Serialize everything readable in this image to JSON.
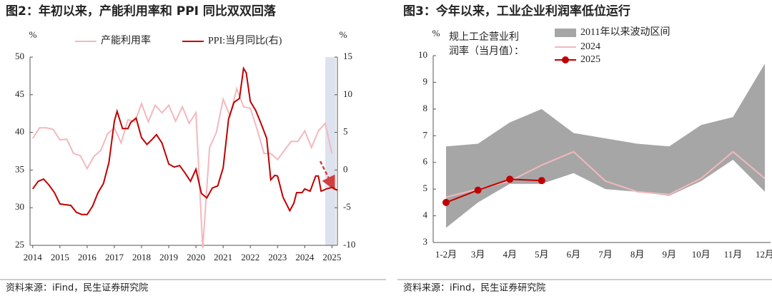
{
  "chart_data": [
    {
      "type": "line",
      "title": "图2：年初以来，产能利用率和 PPI 同比双双回落",
      "ylabel": "%",
      "y2label": "%",
      "xlim": [
        2013.9,
        2025.2
      ],
      "xticks": [
        2014,
        2015,
        2016,
        2017,
        2018,
        2019,
        2020,
        2021,
        2022,
        2023,
        2024,
        2025
      ],
      "ylim": [
        25,
        50
      ],
      "yticks": [
        25,
        30,
        35,
        40,
        45,
        50
      ],
      "y2lim": [
        -10,
        15
      ],
      "y2ticks": [
        -10,
        -5,
        0,
        5,
        10,
        15
      ],
      "series": [
        {
          "name": "产能利用率",
          "color": "#f2b8bd",
          "x": [
            2014,
            2014.25,
            2014.5,
            2014.75,
            2015,
            2015.25,
            2015.5,
            2015.75,
            2016,
            2016.25,
            2016.5,
            2016.75,
            2017,
            2017.25,
            2017.5,
            2017.75,
            2018,
            2018.25,
            2018.5,
            2018.75,
            2019,
            2019.25,
            2019.5,
            2019.75,
            2020,
            2020.25,
            2020.5,
            2020.75,
            2021,
            2021.25,
            2021.5,
            2021.75,
            2022,
            2022.25,
            2022.5,
            2022.75,
            2023,
            2023.25,
            2023.5,
            2023.75,
            2024,
            2024.25,
            2024.5,
            2024.75,
            2025
          ],
          "values": [
            39.2,
            40.6,
            40.6,
            40.4,
            39.0,
            39.1,
            37.2,
            36.9,
            35.2,
            36.8,
            37.6,
            39.8,
            40.6,
            38.6,
            41.7,
            41.4,
            43.8,
            41.4,
            43.6,
            42.6,
            43.6,
            41.5,
            43.4,
            41.2,
            42.6,
            24.6,
            38.0,
            40.0,
            44.4,
            42.2,
            45.8,
            43.4,
            43.2,
            40.4,
            37.2,
            37.2,
            36.4,
            37.6,
            38.8,
            38.8,
            40.2,
            38.0,
            40.2,
            41.2,
            37.2
          ]
        },
        {
          "name": "PPI:当月同比(右)",
          "color": "#c00000",
          "axis": "y2",
          "x": [
            2014,
            2014.2,
            2014.4,
            2014.6,
            2014.8,
            2015,
            2015.2,
            2015.4,
            2015.6,
            2015.8,
            2016,
            2016.2,
            2016.4,
            2016.6,
            2016.8,
            2017,
            2017.1,
            2017.3,
            2017.5,
            2017.6,
            2017.8,
            2018,
            2018.2,
            2018.4,
            2018.55,
            2018.75,
            2019,
            2019.2,
            2019.4,
            2019.6,
            2019.8,
            2020,
            2020.2,
            2020.4,
            2020.6,
            2020.8,
            2021,
            2021.2,
            2021.4,
            2021.6,
            2021.75,
            2021.85,
            2022,
            2022.2,
            2022.4,
            2022.6,
            2022.75,
            2022.9,
            2023,
            2023.2,
            2023.45,
            2023.6,
            2023.7,
            2023.9,
            2024,
            2024.2,
            2024.4,
            2024.5,
            2024.6,
            2024.8,
            2025,
            2025.2
          ],
          "values": [
            -2.5,
            -1.5,
            -1.2,
            -2.0,
            -3.0,
            -4.5,
            -4.6,
            -4.7,
            -5.6,
            -5.9,
            -5.9,
            -4.8,
            -3.0,
            -1.8,
            1.0,
            6.5,
            7.8,
            5.5,
            5.5,
            6.3,
            6.9,
            4.3,
            3.4,
            4.1,
            4.7,
            3.6,
            0.8,
            0.4,
            0.6,
            -0.4,
            -1.5,
            0.1,
            -3.1,
            -3.7,
            -2.4,
            -2.1,
            0.3,
            6.8,
            9.0,
            9.5,
            13.5,
            12.9,
            9.1,
            7.9,
            6.1,
            4.2,
            -1.3,
            -0.7,
            -0.8,
            -3.6,
            -5.4,
            -4.4,
            -3.0,
            -3.0,
            -2.5,
            -2.8,
            -0.8,
            -0.8,
            -2.8,
            -2.5,
            -2.3,
            -2.7
          ]
        }
      ],
      "source": "资料来源：iFind，民生证券研究院"
    },
    {
      "type": "line",
      "title": "图3：今年以来，工业企业利润率低位运行",
      "ylabel": "%",
      "annotation": [
        "规上工企营业利",
        "润率（当月值）："
      ],
      "categories": [
        "1-2月",
        "3月",
        "4月",
        "5月",
        "6月",
        "7月",
        "8月",
        "9月",
        "10月",
        "11月",
        "12月"
      ],
      "ylim": [
        3,
        10
      ],
      "yticks": [
        3,
        4,
        5,
        6,
        7,
        8,
        9,
        10
      ],
      "series": [
        {
          "name": "2011年以来波动区间",
          "type": "band",
          "color": "#a6a6a6",
          "high": [
            6.6,
            6.7,
            7.5,
            8.0,
            7.1,
            6.9,
            6.7,
            6.6,
            7.4,
            7.7,
            9.7
          ],
          "low": [
            3.55,
            4.5,
            5.2,
            5.2,
            5.6,
            5.0,
            4.9,
            4.75,
            5.3,
            6.1,
            4.9
          ]
        },
        {
          "name": "2024",
          "color": "#f2b8bd",
          "values": [
            4.7,
            5.0,
            5.3,
            5.9,
            6.4,
            5.3,
            4.9,
            4.8,
            5.4,
            6.4,
            5.4
          ]
        },
        {
          "name": "2025",
          "color": "#c00000",
          "marker": true,
          "values": [
            4.5,
            4.96,
            5.37,
            5.32,
            null,
            null,
            null,
            null,
            null,
            null,
            null
          ]
        }
      ],
      "source": "资料来源：iFind，民生证券研究院"
    }
  ]
}
